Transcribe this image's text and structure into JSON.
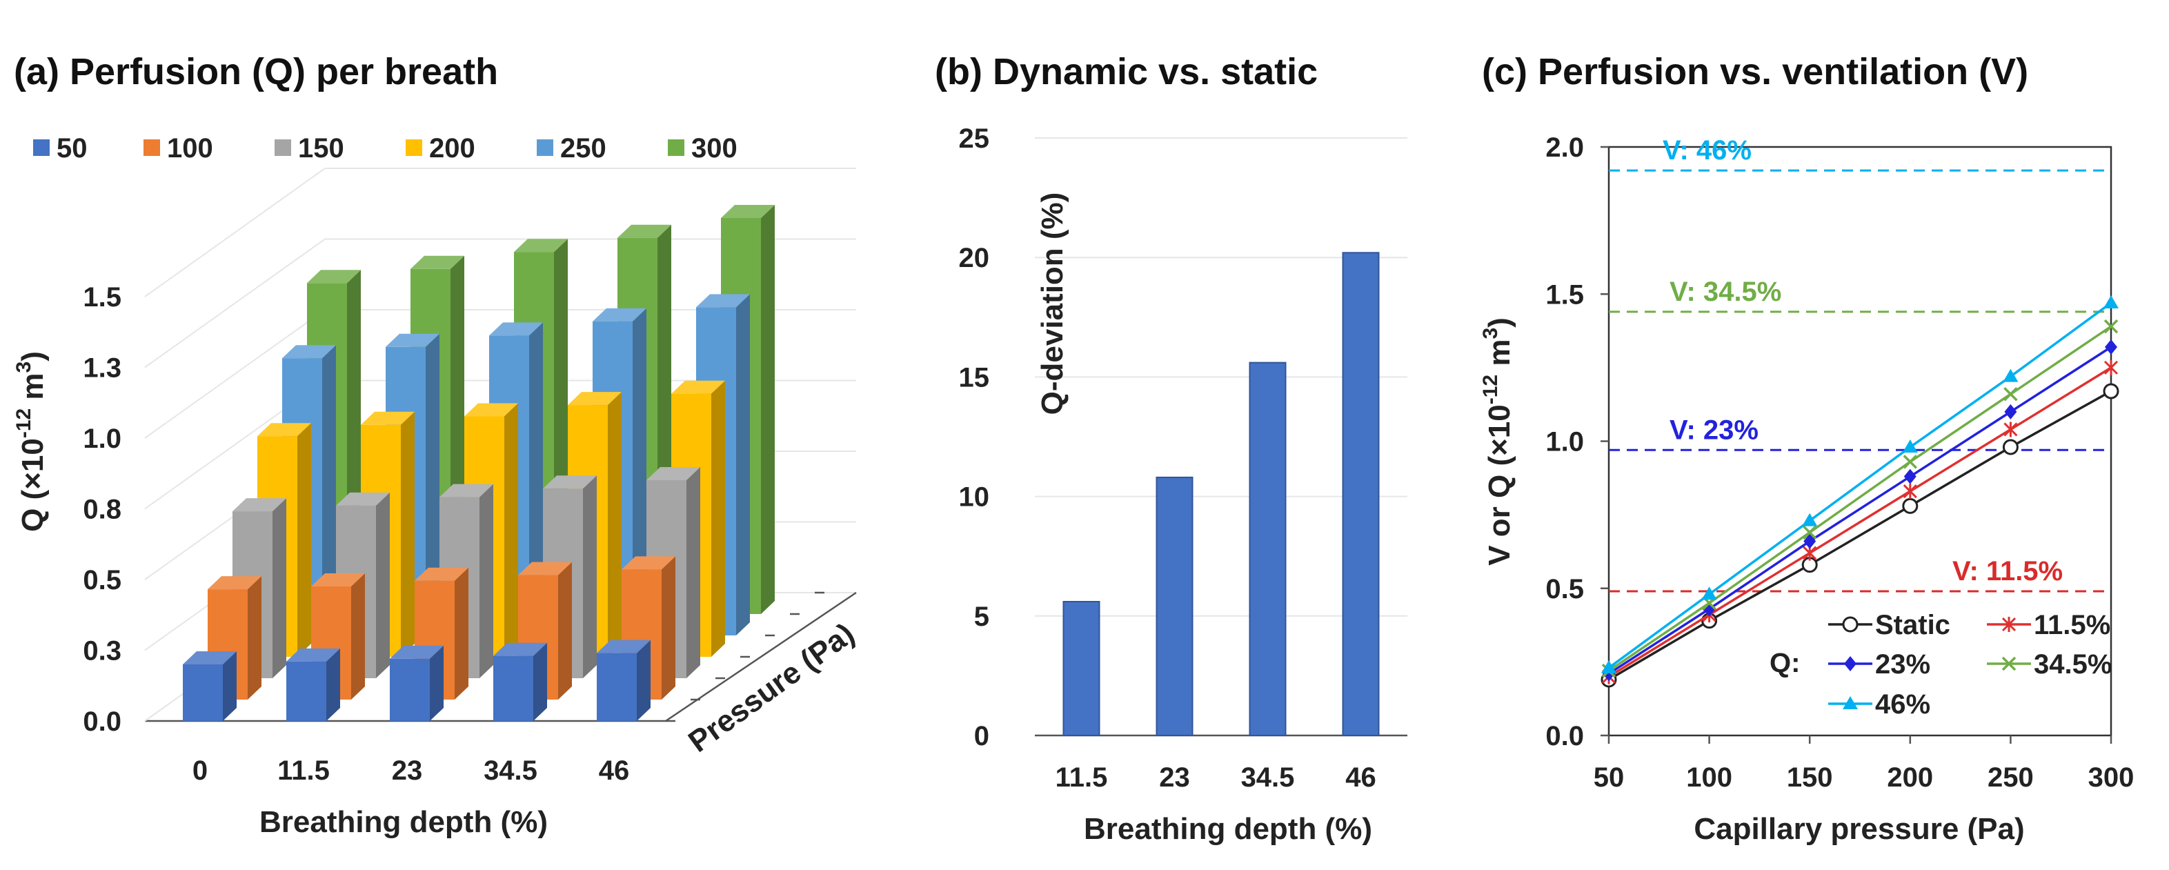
{
  "chart_data": [
    {
      "type": "bar",
      "panel": "a",
      "title": "(a) Perfusion (Q) per breath",
      "xlabel": "Breathing depth (%)",
      "ylabel": "Q (×10",
      "ylabel_exp1": "-12",
      "ylabel_mid": " m",
      "ylabel_exp2": "3",
      "ylabel_end": ")",
      "zlabel": "Pressure (Pa)",
      "categories": [
        "0",
        "11.5",
        "23",
        "34.5",
        "46"
      ],
      "yticks": [
        "0.0",
        "0.3",
        "0.5",
        "0.8",
        "1.0",
        "1.3",
        "1.5"
      ],
      "ylim": [
        0,
        1.5
      ],
      "series": [
        {
          "name": "50",
          "color": "#4472c4",
          "values": [
            0.2,
            0.21,
            0.22,
            0.23,
            0.24
          ]
        },
        {
          "name": "100",
          "color": "#ed7d31",
          "values": [
            0.39,
            0.4,
            0.42,
            0.44,
            0.46
          ]
        },
        {
          "name": "150",
          "color": "#a5a5a5",
          "values": [
            0.59,
            0.61,
            0.64,
            0.67,
            0.7
          ]
        },
        {
          "name": "200",
          "color": "#ffc000",
          "values": [
            0.78,
            0.82,
            0.85,
            0.89,
            0.93
          ]
        },
        {
          "name": "250",
          "color": "#5b9bd5",
          "values": [
            0.98,
            1.02,
            1.06,
            1.11,
            1.16
          ]
        },
        {
          "name": "300",
          "color": "#70ad47",
          "values": [
            1.17,
            1.22,
            1.28,
            1.33,
            1.4
          ]
        }
      ]
    },
    {
      "type": "bar",
      "panel": "b",
      "title": "(b) Dynamic vs. static",
      "xlabel": "Breathing depth (%)",
      "ylabel": "Q-deviation (%)",
      "categories": [
        "11.5",
        "23",
        "34.5",
        "46"
      ],
      "values": [
        5.6,
        10.8,
        15.6,
        20.2
      ],
      "color": "#4472c4",
      "yticks": [
        "0",
        "5",
        "10",
        "15",
        "20",
        "25"
      ],
      "ylim": [
        0,
        25
      ]
    },
    {
      "type": "line",
      "panel": "c",
      "title": "(c) Perfusion vs. ventilation (V)",
      "xlabel": "Capillary pressure (Pa)",
      "ylabel": "V or Q (×10",
      "ylabel_exp1": "-12",
      "ylabel_mid": " m",
      "ylabel_exp2": "3",
      "ylabel_end": ")",
      "x": [
        50,
        100,
        150,
        200,
        250,
        300
      ],
      "xlim": [
        50,
        300
      ],
      "xticks": [
        "50",
        "100",
        "150",
        "200",
        "250",
        "300"
      ],
      "ylim": [
        0,
        2.0
      ],
      "yticks": [
        "0.0",
        "0.5",
        "1.0",
        "1.5",
        "2.0"
      ],
      "legend_prefix": "Q:",
      "series": [
        {
          "name": "Static",
          "color": "#222222",
          "marker": "circle",
          "values": [
            0.19,
            0.39,
            0.58,
            0.78,
            0.98,
            1.17
          ]
        },
        {
          "name": "11.5%",
          "color": "#e03030",
          "marker": "star",
          "values": [
            0.2,
            0.41,
            0.62,
            0.83,
            1.04,
            1.25
          ]
        },
        {
          "name": "23%",
          "color": "#2222dd",
          "marker": "diamond",
          "values": [
            0.21,
            0.43,
            0.66,
            0.88,
            1.1,
            1.32
          ]
        },
        {
          "name": "34.5%",
          "color": "#70ad47",
          "marker": "x",
          "values": [
            0.22,
            0.45,
            0.69,
            0.93,
            1.16,
            1.39
          ]
        },
        {
          "name": "46%",
          "color": "#00b0f0",
          "marker": "triangle",
          "values": [
            0.23,
            0.48,
            0.73,
            0.98,
            1.22,
            1.47
          ]
        }
      ],
      "reference_lines": [
        {
          "label": "V: 11.5%",
          "value": 0.49,
          "color": "#d92b2b"
        },
        {
          "label": "V: 23%",
          "value": 0.97,
          "color": "#2222dd"
        },
        {
          "label": "V: 34.5%",
          "value": 1.44,
          "color": "#70ad47"
        },
        {
          "label": "V: 46%",
          "value": 1.92,
          "color": "#00b0f0"
        }
      ]
    }
  ]
}
